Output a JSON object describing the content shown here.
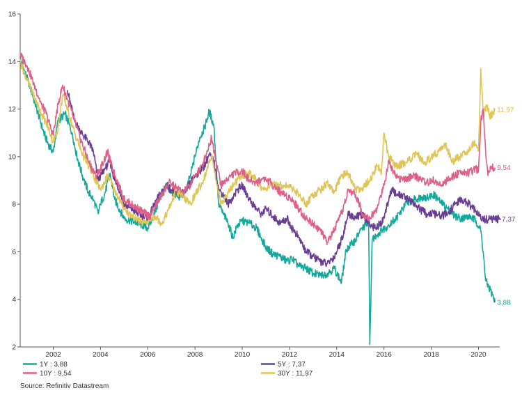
{
  "chart_data": {
    "type": "line",
    "title": "",
    "xlabel": "",
    "ylabel": "",
    "xlim": [
      2000.6,
      2020.9
    ],
    "ylim": [
      2,
      16
    ],
    "y_ticks": [
      "2",
      "4",
      "6",
      "8",
      "10",
      "12",
      "14",
      "16"
    ],
    "x_ticks": [
      "2002",
      "2004",
      "2006",
      "2008",
      "2010",
      "2012",
      "2014",
      "2016",
      "2018",
      "2020"
    ],
    "grid": false,
    "legend_position": "bottom",
    "source": "Source: Refinitiv Datastream",
    "series": [
      {
        "name": "1Y",
        "legend_label": "1Y : 3,88",
        "end_label": "3,88",
        "color": "#16a79b",
        "x": [
          2000.6,
          2001.0,
          2001.3,
          2001.6,
          2001.8,
          2002.0,
          2002.2,
          2002.5,
          2002.8,
          2003.0,
          2003.3,
          2003.5,
          2003.7,
          2003.9,
          2004.0,
          2004.2,
          2004.4,
          2004.6,
          2004.8,
          2005.0,
          2005.3,
          2005.6,
          2005.8,
          2006.0,
          2006.2,
          2006.5,
          2006.8,
          2007.0,
          2007.3,
          2007.6,
          2007.8,
          2008.0,
          2008.2,
          2008.4,
          2008.6,
          2008.8,
          2009.0,
          2009.2,
          2009.4,
          2009.6,
          2009.8,
          2010.0,
          2010.3,
          2010.6,
          2010.8,
          2011.0,
          2011.3,
          2011.6,
          2011.9,
          2012.1,
          2012.4,
          2012.7,
          2013.0,
          2013.3,
          2013.6,
          2013.9,
          2014.2,
          2014.4,
          2014.6,
          2014.8,
          2015.0,
          2015.2,
          2015.35,
          2015.4,
          2015.5,
          2015.7,
          2015.9,
          2016.2,
          2016.5,
          2016.8,
          2017.0,
          2017.3,
          2017.6,
          2017.9,
          2018.1,
          2018.4,
          2018.7,
          2019.0,
          2019.3,
          2019.6,
          2019.9,
          2020.1,
          2020.2,
          2020.3,
          2020.5,
          2020.7
        ],
        "values": [
          14.1,
          13.0,
          12.0,
          11.0,
          10.5,
          10.2,
          11.5,
          11.8,
          11.0,
          10.0,
          9.0,
          8.5,
          8.2,
          7.6,
          8.0,
          8.5,
          9.3,
          8.2,
          7.8,
          7.4,
          7.3,
          7.2,
          7.1,
          7.0,
          7.4,
          8.2,
          8.8,
          8.5,
          8.3,
          8.5,
          9.2,
          10.0,
          10.8,
          11.2,
          11.9,
          11.3,
          8.0,
          7.6,
          7.2,
          6.6,
          7.1,
          7.3,
          7.2,
          7.0,
          6.6,
          6.2,
          5.9,
          5.8,
          5.6,
          5.7,
          5.4,
          5.3,
          5.1,
          5.0,
          5.1,
          5.3,
          4.7,
          6.1,
          6.3,
          6.5,
          6.9,
          7.1,
          7.2,
          2.1,
          6.5,
          6.7,
          6.9,
          7.1,
          7.4,
          7.8,
          8.1,
          8.2,
          8.3,
          8.3,
          8.4,
          8.1,
          7.8,
          7.5,
          7.4,
          7.5,
          7.3,
          6.9,
          6.0,
          4.8,
          4.4,
          3.88
        ]
      },
      {
        "name": "5Y",
        "legend_label": "5Y : 7,37",
        "end_label": "7,37",
        "color": "#6a3d94",
        "x": [
          2002.6,
          2002.9,
          2003.2,
          2003.5,
          2003.7,
          2003.9,
          2004.0,
          2004.2,
          2004.4,
          2004.6,
          2004.8,
          2005.0,
          2005.3,
          2005.6,
          2005.8,
          2006.0,
          2006.2,
          2006.5,
          2006.8,
          2007.0,
          2007.3,
          2007.6,
          2007.8,
          2008.0,
          2008.2,
          2008.4,
          2008.6,
          2008.8,
          2009.0,
          2009.2,
          2009.4,
          2009.6,
          2009.8,
          2010.0,
          2010.3,
          2010.6,
          2010.8,
          2011.0,
          2011.3,
          2011.6,
          2011.9,
          2012.1,
          2012.4,
          2012.7,
          2013.0,
          2013.3,
          2013.6,
          2013.9,
          2014.2,
          2014.5,
          2014.8,
          2015.0,
          2015.3,
          2015.6,
          2015.9,
          2016.1,
          2016.3,
          2016.6,
          2016.9,
          2017.2,
          2017.5,
          2017.8,
          2018.1,
          2018.4,
          2018.7,
          2019.0,
          2019.3,
          2019.6,
          2019.9,
          2020.1,
          2020.3,
          2020.5,
          2020.9
        ],
        "values": [
          12.8,
          11.5,
          11.0,
          10.6,
          10.2,
          9.0,
          9.2,
          9.5,
          9.8,
          9.0,
          8.6,
          8.0,
          7.8,
          7.6,
          7.5,
          7.4,
          7.8,
          8.4,
          8.8,
          8.6,
          8.4,
          8.5,
          8.9,
          9.2,
          9.4,
          9.6,
          10.1,
          9.8,
          8.6,
          8.4,
          8.0,
          8.3,
          8.6,
          8.8,
          8.2,
          7.8,
          7.6,
          7.8,
          7.5,
          7.2,
          7.4,
          7.0,
          6.6,
          6.0,
          5.8,
          5.6,
          5.5,
          5.8,
          6.5,
          7.6,
          7.4,
          7.6,
          7.3,
          7.0,
          7.2,
          7.8,
          8.6,
          8.4,
          8.3,
          8.1,
          7.8,
          7.6,
          7.6,
          7.5,
          7.6,
          8.0,
          8.2,
          8.0,
          7.7,
          7.4,
          7.37,
          7.37,
          7.37
        ]
      },
      {
        "name": "10Y",
        "legend_label": "10Y : 9,54",
        "end_label": "9,54",
        "color": "#de5f88",
        "x": [
          2000.6,
          2000.9,
          2001.2,
          2001.5,
          2001.7,
          2002.0,
          2002.2,
          2002.4,
          2002.6,
          2002.9,
          2003.2,
          2003.5,
          2003.8,
          2004.0,
          2004.3,
          2004.5,
          2004.7,
          2005.0,
          2005.3,
          2005.6,
          2005.9,
          2006.1,
          2006.3,
          2006.6,
          2006.9,
          2007.2,
          2007.5,
          2007.8,
          2008.0,
          2008.3,
          2008.5,
          2008.7,
          2008.9,
          2009.1,
          2009.3,
          2009.5,
          2009.7,
          2010.0,
          2010.3,
          2010.6,
          2010.9,
          2011.2,
          2011.5,
          2011.8,
          2012.1,
          2012.4,
          2012.7,
          2013.0,
          2013.3,
          2013.6,
          2013.9,
          2014.2,
          2014.5,
          2014.8,
          2015.1,
          2015.4,
          2015.7,
          2016.0,
          2016.2,
          2016.4,
          2016.6,
          2016.9,
          2017.2,
          2017.5,
          2017.8,
          2018.1,
          2018.4,
          2018.7,
          2019.0,
          2019.3,
          2019.6,
          2019.9,
          2020.0,
          2020.1,
          2020.2,
          2020.3,
          2020.4,
          2020.5,
          2020.7
        ],
        "values": [
          14.3,
          13.8,
          13.0,
          12.2,
          11.8,
          10.9,
          12.2,
          13.0,
          12.4,
          11.5,
          10.6,
          9.8,
          9.2,
          9.5,
          10.2,
          9.5,
          9.0,
          8.2,
          8.0,
          7.8,
          7.6,
          7.5,
          7.9,
          8.4,
          8.9,
          8.7,
          8.5,
          8.8,
          9.2,
          9.6,
          10.2,
          10.8,
          9.8,
          8.8,
          9.0,
          9.2,
          9.3,
          9.4,
          9.0,
          8.9,
          9.1,
          8.9,
          8.6,
          8.4,
          8.2,
          7.8,
          7.4,
          7.2,
          6.9,
          6.4,
          6.9,
          7.6,
          8.6,
          8.4,
          7.6,
          7.4,
          7.8,
          8.8,
          9.8,
          9.4,
          9.1,
          9.0,
          9.2,
          9.1,
          8.9,
          9.0,
          8.8,
          9.0,
          9.2,
          9.4,
          9.3,
          9.5,
          9.4,
          11.5,
          12.0,
          10.3,
          9.2,
          9.6,
          9.54
        ]
      },
      {
        "name": "30Y",
        "legend_label": "30Y : 11,97",
        "end_label": "11,97",
        "color": "#dfc553",
        "x": [
          2000.6,
          2000.9,
          2001.2,
          2001.5,
          2001.8,
          2002.0,
          2002.2,
          2002.4,
          2002.6,
          2002.9,
          2003.2,
          2003.5,
          2003.8,
          2004.0,
          2004.3,
          2004.6,
          2004.9,
          2005.2,
          2005.5,
          2005.8,
          2006.0,
          2006.3,
          2006.6,
          2006.9,
          2007.2,
          2007.5,
          2007.8,
          2008.0,
          2008.3,
          2008.5,
          2008.7,
          2008.9,
          2009.1,
          2009.4,
          2009.7,
          2010.0,
          2010.3,
          2010.6,
          2010.9,
          2011.2,
          2011.5,
          2011.8,
          2012.1,
          2012.4,
          2012.7,
          2013.0,
          2013.3,
          2013.6,
          2013.9,
          2014.2,
          2014.5,
          2014.8,
          2015.1,
          2015.4,
          2015.7,
          2015.9,
          2016.0,
          2016.2,
          2016.5,
          2016.8,
          2017.1,
          2017.4,
          2017.7,
          2018.0,
          2018.3,
          2018.6,
          2018.9,
          2019.2,
          2019.5,
          2019.8,
          2020.0,
          2020.1,
          2020.2,
          2020.35,
          2020.5,
          2020.7
        ],
        "values": [
          14.0,
          13.2,
          12.5,
          11.8,
          11.2,
          10.6,
          11.2,
          12.6,
          12.0,
          11.0,
          10.2,
          9.6,
          9.0,
          8.6,
          9.2,
          8.6,
          8.0,
          7.6,
          7.4,
          7.2,
          7.3,
          7.5,
          7.2,
          7.8,
          8.6,
          8.3,
          8.0,
          8.4,
          8.9,
          9.4,
          10.1,
          9.0,
          8.0,
          8.5,
          8.9,
          9.2,
          9.3,
          9.0,
          8.6,
          8.8,
          8.8,
          8.8,
          8.7,
          8.4,
          8.0,
          8.4,
          8.6,
          8.9,
          8.5,
          9.2,
          9.3,
          8.6,
          8.7,
          9.0,
          9.6,
          9.4,
          11.0,
          10.0,
          9.6,
          9.7,
          9.9,
          10.1,
          9.7,
          10.0,
          10.2,
          10.5,
          9.8,
          10.0,
          10.2,
          10.6,
          10.3,
          13.7,
          11.8,
          12.1,
          11.7,
          11.97
        ]
      }
    ]
  }
}
